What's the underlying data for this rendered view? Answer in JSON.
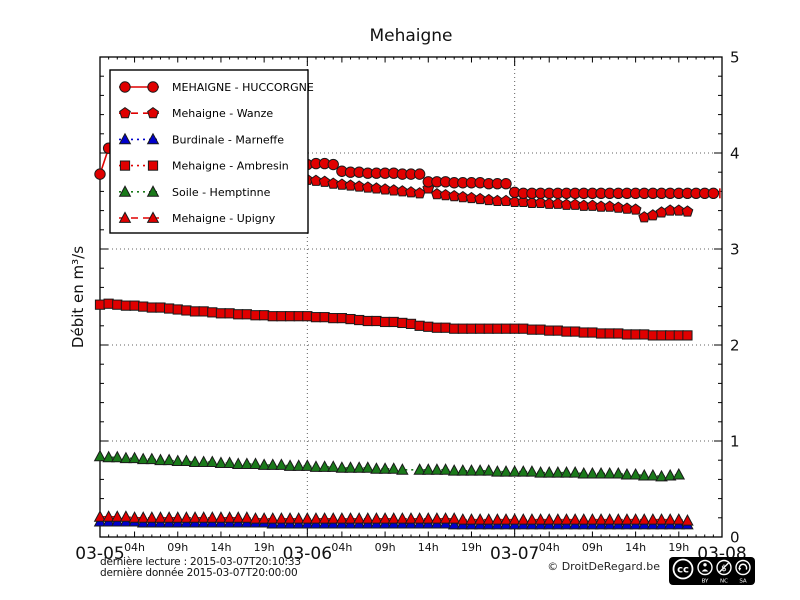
{
  "title": "Mehaigne",
  "y_axis": {
    "label": "Débit en m³/s",
    "min": 0,
    "max": 5,
    "ticks": [
      0,
      1,
      2,
      3,
      4,
      5
    ],
    "minor_step": 0.2
  },
  "x_axis": {
    "hours_total": 72,
    "days": [
      {
        "label": "03-05",
        "t": 0
      },
      {
        "label": "03-06",
        "t": 24
      },
      {
        "label": "03-07",
        "t": 48
      },
      {
        "label": "03-08",
        "t": 72
      }
    ],
    "hour_labels": [
      {
        "label": "04h",
        "h": 4
      },
      {
        "label": "09h",
        "h": 9
      },
      {
        "label": "14h",
        "h": 14
      },
      {
        "label": "19h",
        "h": 19
      }
    ]
  },
  "footer": {
    "line1": "dernière lecture : 2015-03-07T20:10:33",
    "line2": "dernière donnée  2015-03-07T20:00:00",
    "copyright": "© DroitDeRegard.be",
    "license": {
      "labels": [
        "BY",
        "NC",
        "SA"
      ]
    }
  },
  "colors": {
    "red": "#e00000",
    "blue": "#0000cc",
    "green": "#1a7a1a",
    "grid": "#606060",
    "axis": "#000000"
  },
  "chart_data": {
    "type": "line",
    "title": "Mehaigne",
    "ylabel": "Débit en m³/s",
    "ylim": [
      0,
      5
    ],
    "x_unit": "hours since 2015-03-05 00:00",
    "xlim": [
      0,
      72
    ],
    "grid": "dotted horizontal at y=1..4, dotted vertical at day boundaries",
    "legend_position": "upper left",
    "draw_order": [
      2,
      4,
      3,
      5,
      1,
      0
    ],
    "series": [
      {
        "name": "MEHAIGNE - HUCCORGNE",
        "marker": "circle",
        "color_key": "red",
        "line": "solid",
        "start": 0,
        "step": 1,
        "end_cap": true,
        "values": [
          3.78,
          4.05,
          4.17,
          4.02,
          3.96,
          3.92,
          3.9,
          3.88,
          3.87,
          3.86,
          3.85,
          3.84,
          3.83,
          3.82,
          3.81,
          3.8,
          3.78,
          3.76,
          3.74,
          3.71,
          3.68,
          3.65,
          3.62,
          3.6,
          3.88,
          3.89,
          3.89,
          3.88,
          3.81,
          3.8,
          3.8,
          3.79,
          3.79,
          3.79,
          3.79,
          3.78,
          3.78,
          3.78,
          3.7,
          3.7,
          3.7,
          3.69,
          3.69,
          3.69,
          3.69,
          3.68,
          3.68,
          3.68,
          3.59,
          3.58,
          3.58,
          3.58,
          3.58,
          3.58,
          3.58,
          3.58,
          3.58,
          3.58,
          3.58,
          3.58,
          3.58,
          3.58,
          3.58,
          3.58,
          3.58,
          3.58,
          3.58,
          3.58,
          3.58,
          3.58,
          3.58,
          3.58
        ]
      },
      {
        "name": "Mehaigne - Wanze",
        "marker": "pentagon",
        "color_key": "red",
        "line": "dashed",
        "start": 23,
        "step": 1,
        "end_cap": false,
        "values": [
          3.58,
          3.72,
          3.71,
          3.7,
          3.68,
          3.67,
          3.66,
          3.65,
          3.64,
          3.63,
          3.62,
          3.61,
          3.6,
          3.59,
          3.58,
          3.63,
          3.57,
          3.56,
          3.55,
          3.54,
          3.53,
          3.52,
          3.51,
          3.5,
          3.5,
          3.49,
          3.49,
          3.48,
          3.48,
          3.47,
          3.47,
          3.46,
          3.46,
          3.45,
          3.45,
          3.44,
          3.44,
          3.43,
          3.42,
          3.41,
          3.33,
          3.35,
          3.38,
          3.4,
          3.4,
          3.39
        ]
      },
      {
        "name": "Burdinale - Marneffe",
        "marker": "triangle",
        "color_key": "blue",
        "line": "dotted",
        "start": 0,
        "step": 1,
        "end_cap": false,
        "values": [
          0.16,
          0.16,
          0.16,
          0.16,
          0.16,
          0.15,
          0.15,
          0.15,
          0.15,
          0.15,
          0.15,
          0.15,
          0.15,
          0.15,
          0.15,
          0.15,
          0.15,
          0.15,
          0.15,
          0.15,
          0.14,
          0.14,
          0.14,
          0.14,
          0.14,
          0.14,
          0.14,
          0.14,
          0.14,
          0.14,
          0.14,
          0.14,
          0.14,
          0.14,
          0.14,
          0.14,
          0.14,
          0.14,
          0.14,
          0.14,
          0.14,
          0.13,
          0.13,
          0.13,
          0.13,
          0.13,
          0.13,
          0.13,
          0.13,
          0.13,
          0.13,
          0.13,
          0.13,
          0.13,
          0.13,
          0.13,
          0.13,
          0.13,
          0.13,
          0.13,
          0.13,
          0.13,
          0.13,
          0.13,
          0.13,
          0.13,
          0.13,
          0.13,
          0.13
        ]
      },
      {
        "name": "Mehaigne - Ambresin",
        "marker": "square",
        "color_key": "red",
        "line": "dotted",
        "start": 0,
        "step": 1,
        "end_cap": false,
        "values": [
          2.42,
          2.43,
          2.42,
          2.41,
          2.41,
          2.4,
          2.39,
          2.39,
          2.38,
          2.37,
          2.36,
          2.35,
          2.35,
          2.34,
          2.33,
          2.33,
          2.32,
          2.32,
          2.31,
          2.31,
          2.3,
          2.3,
          2.3,
          2.3,
          2.3,
          2.29,
          2.29,
          2.28,
          2.28,
          2.27,
          2.26,
          2.25,
          2.25,
          2.24,
          2.24,
          2.23,
          2.22,
          2.2,
          2.19,
          2.18,
          2.18,
          2.17,
          2.17,
          2.17,
          2.17,
          2.17,
          2.17,
          2.17,
          2.17,
          2.17,
          2.16,
          2.16,
          2.15,
          2.15,
          2.14,
          2.14,
          2.13,
          2.13,
          2.12,
          2.12,
          2.12,
          2.11,
          2.11,
          2.11,
          2.1,
          2.1,
          2.1,
          2.1,
          2.1
        ]
      },
      {
        "name": "Soile - Hemptinne",
        "marker": "triangle",
        "color_key": "green",
        "line": "dotted",
        "start": 0,
        "step": 1,
        "end_cap": false,
        "values": [
          0.84,
          0.83,
          0.83,
          0.82,
          0.82,
          0.81,
          0.81,
          0.8,
          0.8,
          0.79,
          0.79,
          0.78,
          0.78,
          0.78,
          0.77,
          0.77,
          0.76,
          0.76,
          0.76,
          0.75,
          0.75,
          0.75,
          0.74,
          0.74,
          0.74,
          0.73,
          0.73,
          0.73,
          0.72,
          0.72,
          0.72,
          0.72,
          0.71,
          0.71,
          0.71,
          0.7,
          null,
          0.7,
          0.7,
          0.7,
          0.7,
          0.69,
          0.69,
          0.69,
          0.69,
          0.69,
          0.68,
          0.68,
          0.68,
          0.68,
          0.68,
          0.67,
          0.67,
          0.67,
          0.67,
          0.67,
          0.66,
          0.66,
          0.66,
          0.66,
          0.66,
          0.65,
          0.65,
          0.64,
          0.64,
          0.63,
          0.64,
          0.65
        ]
      },
      {
        "name": "Mehaigne - Upigny",
        "marker": "triangle",
        "color_key": "red",
        "line": "dashed",
        "start": 0,
        "step": 1,
        "end_cap": false,
        "values": [
          0.21,
          0.21,
          0.21,
          0.21,
          0.2,
          0.2,
          0.2,
          0.2,
          0.2,
          0.2,
          0.2,
          0.2,
          0.2,
          0.2,
          0.2,
          0.2,
          0.2,
          0.2,
          0.19,
          0.19,
          0.19,
          0.19,
          0.19,
          0.19,
          0.19,
          0.19,
          0.19,
          0.19,
          0.19,
          0.19,
          0.19,
          0.19,
          0.19,
          0.19,
          0.19,
          0.19,
          0.19,
          0.19,
          0.19,
          0.19,
          0.19,
          0.19,
          0.18,
          0.18,
          0.18,
          0.18,
          0.18,
          0.18,
          0.18,
          0.18,
          0.18,
          0.18,
          0.18,
          0.18,
          0.18,
          0.18,
          0.18,
          0.18,
          0.18,
          0.18,
          0.18,
          0.18,
          0.18,
          0.18,
          0.18,
          0.18,
          0.18,
          0.18,
          0.17
        ]
      }
    ]
  }
}
